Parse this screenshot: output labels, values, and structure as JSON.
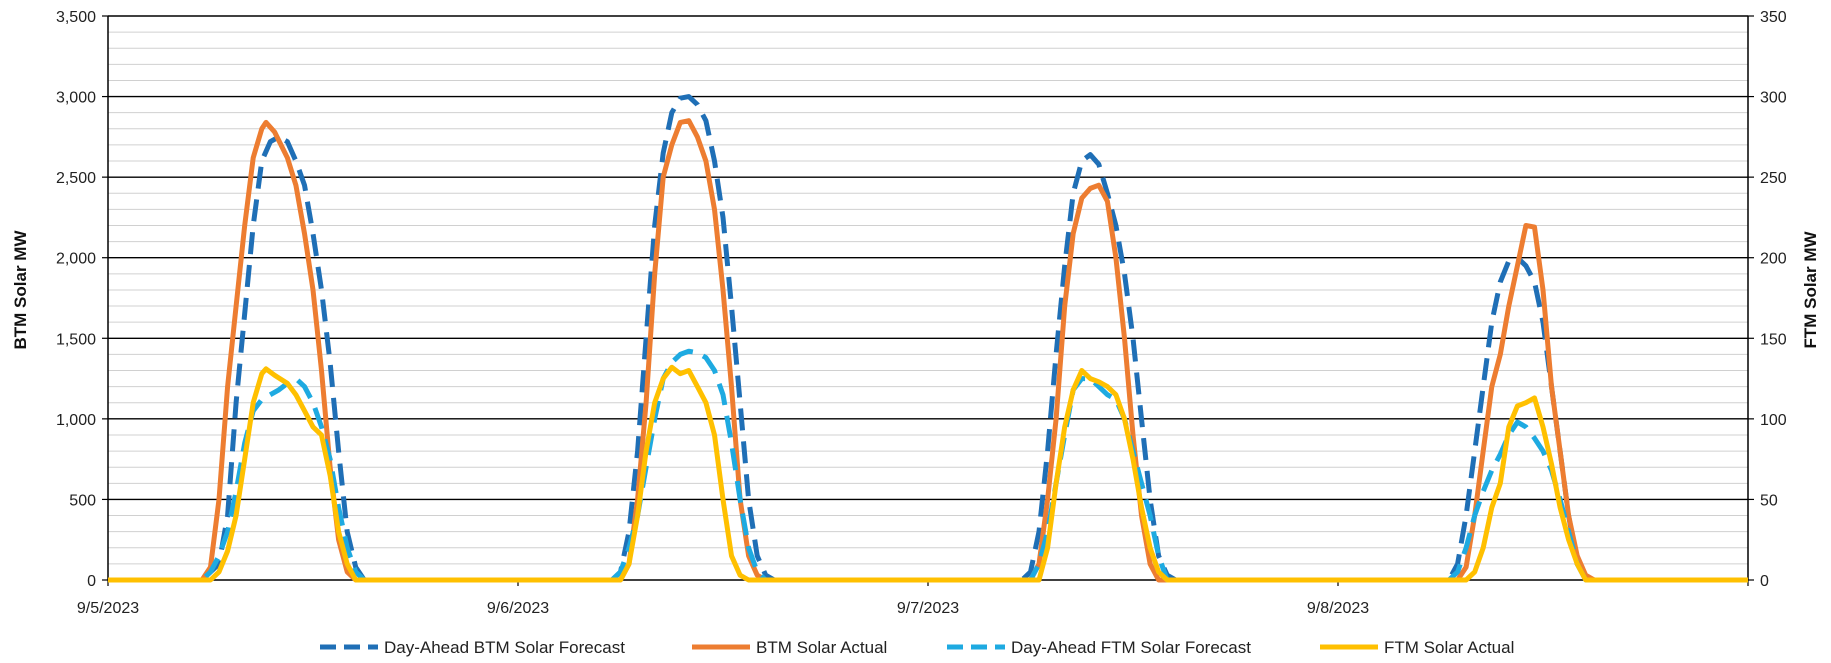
{
  "chart_data": {
    "type": "line",
    "ylabel_left": "BTM Solar MW",
    "ylabel_right": "FTM Solar MW",
    "ylim_left": [
      0,
      3500
    ],
    "ylim_right": [
      0,
      350
    ],
    "left_ticks": [
      "0",
      "500",
      "1,000",
      "1,500",
      "2,000",
      "2,500",
      "3,000",
      "3,500"
    ],
    "right_ticks": [
      "0",
      "50",
      "100",
      "150",
      "200",
      "250",
      "300",
      "350"
    ],
    "x_ticks": [
      "9/5/2023",
      "9/6/2023",
      "9/7/2023",
      "9/8/2023"
    ],
    "x_range_hours": [
      0,
      96
    ],
    "x_unit": "hour",
    "grid": "major and minor horizontal",
    "legend_position": "bottom",
    "series": [
      {
        "name": "Day-Ahead BTM Solar Forecast",
        "axis": "left",
        "color": "#1F6FB6",
        "style": "dashed",
        "points": [
          [
            0,
            0
          ],
          [
            5.5,
            0
          ],
          [
            6.5,
            100
          ],
          [
            7,
            400
          ],
          [
            7.5,
            1100
          ],
          [
            8.5,
            2200
          ],
          [
            9,
            2600
          ],
          [
            9.5,
            2720
          ],
          [
            10,
            2750
          ],
          [
            10.5,
            2720
          ],
          [
            11,
            2600
          ],
          [
            11.5,
            2450
          ],
          [
            12,
            2150
          ],
          [
            12.5,
            1800
          ],
          [
            13,
            1350
          ],
          [
            13.5,
            800
          ],
          [
            14,
            300
          ],
          [
            14.5,
            80
          ],
          [
            15,
            0
          ],
          [
            24,
            0
          ],
          [
            29.5,
            0
          ],
          [
            30,
            50
          ],
          [
            30.5,
            300
          ],
          [
            31,
            800
          ],
          [
            31.5,
            1500
          ],
          [
            32,
            2200
          ],
          [
            32.5,
            2650
          ],
          [
            33,
            2900
          ],
          [
            33.5,
            2990
          ],
          [
            34,
            3000
          ],
          [
            34.5,
            2950
          ],
          [
            35,
            2850
          ],
          [
            35.5,
            2600
          ],
          [
            36,
            2250
          ],
          [
            36.5,
            1700
          ],
          [
            37,
            1100
          ],
          [
            37.5,
            500
          ],
          [
            38,
            150
          ],
          [
            38.5,
            30
          ],
          [
            39,
            0
          ],
          [
            48,
            0
          ],
          [
            53.5,
            0
          ],
          [
            54,
            50
          ],
          [
            54.5,
            300
          ],
          [
            55,
            800
          ],
          [
            55.5,
            1400
          ],
          [
            56,
            1950
          ],
          [
            56.5,
            2400
          ],
          [
            57,
            2600
          ],
          [
            57.5,
            2640
          ],
          [
            58,
            2580
          ],
          [
            58.5,
            2400
          ],
          [
            59,
            2200
          ],
          [
            59.5,
            1900
          ],
          [
            60,
            1500
          ],
          [
            60.5,
            1000
          ],
          [
            61,
            500
          ],
          [
            61.5,
            150
          ],
          [
            62,
            30
          ],
          [
            62.5,
            0
          ],
          [
            72,
            0
          ],
          [
            78.5,
            0
          ],
          [
            79,
            100
          ],
          [
            79.5,
            400
          ],
          [
            80,
            800
          ],
          [
            80.5,
            1200
          ],
          [
            81,
            1600
          ],
          [
            81.5,
            1850
          ],
          [
            82,
            1980
          ],
          [
            82.5,
            2000
          ],
          [
            83,
            1950
          ],
          [
            83.5,
            1850
          ],
          [
            84,
            1600
          ],
          [
            84.5,
            1200
          ],
          [
            85,
            800
          ],
          [
            85.5,
            400
          ],
          [
            86,
            100
          ],
          [
            86.5,
            20
          ],
          [
            87,
            0
          ],
          [
            96,
            0
          ]
        ]
      },
      {
        "name": "BTM Solar Actual",
        "axis": "left",
        "color": "#ED7D31",
        "style": "solid",
        "points": [
          [
            0,
            0
          ],
          [
            5.5,
            0
          ],
          [
            6,
            80
          ],
          [
            6.5,
            500
          ],
          [
            7,
            1200
          ],
          [
            7.5,
            1700
          ],
          [
            8,
            2200
          ],
          [
            8.5,
            2620
          ],
          [
            9,
            2800
          ],
          [
            9.25,
            2840
          ],
          [
            9.75,
            2780
          ],
          [
            10.5,
            2620
          ],
          [
            11,
            2450
          ],
          [
            11.5,
            2150
          ],
          [
            12,
            1800
          ],
          [
            12.5,
            1300
          ],
          [
            13,
            700
          ],
          [
            13.5,
            250
          ],
          [
            14,
            50
          ],
          [
            14.5,
            0
          ],
          [
            24,
            0
          ],
          [
            30,
            0
          ],
          [
            30.5,
            100
          ],
          [
            31,
            500
          ],
          [
            31.5,
            1100
          ],
          [
            32,
            1900
          ],
          [
            32.5,
            2500
          ],
          [
            33,
            2700
          ],
          [
            33.5,
            2840
          ],
          [
            34,
            2850
          ],
          [
            34.5,
            2750
          ],
          [
            35,
            2600
          ],
          [
            35.5,
            2300
          ],
          [
            36,
            1800
          ],
          [
            36.5,
            1200
          ],
          [
            37,
            500
          ],
          [
            37.5,
            150
          ],
          [
            38,
            30
          ],
          [
            38.5,
            0
          ],
          [
            48,
            0
          ],
          [
            54,
            0
          ],
          [
            54.5,
            100
          ],
          [
            55,
            500
          ],
          [
            55.5,
            1000
          ],
          [
            56,
            1700
          ],
          [
            56.5,
            2150
          ],
          [
            57,
            2370
          ],
          [
            57.5,
            2430
          ],
          [
            58,
            2450
          ],
          [
            58.5,
            2350
          ],
          [
            59,
            2000
          ],
          [
            59.5,
            1500
          ],
          [
            60,
            900
          ],
          [
            60.5,
            400
          ],
          [
            61,
            100
          ],
          [
            61.5,
            0
          ],
          [
            72,
            0
          ],
          [
            79,
            0
          ],
          [
            79.5,
            80
          ],
          [
            80,
            400
          ],
          [
            80.5,
            800
          ],
          [
            81,
            1200
          ],
          [
            81.5,
            1400
          ],
          [
            82,
            1700
          ],
          [
            82.5,
            1950
          ],
          [
            83,
            2200
          ],
          [
            83.5,
            2190
          ],
          [
            84,
            1800
          ],
          [
            84.5,
            1200
          ],
          [
            85,
            800
          ],
          [
            85.5,
            400
          ],
          [
            86,
            150
          ],
          [
            86.5,
            30
          ],
          [
            87,
            0
          ],
          [
            96,
            0
          ]
        ]
      },
      {
        "name": "Day-Ahead FTM Solar Forecast",
        "axis": "right",
        "color": "#1EAAE1",
        "style": "dashed",
        "points": [
          [
            0,
            0
          ],
          [
            5.5,
            0
          ],
          [
            6,
            5
          ],
          [
            6.5,
            15
          ],
          [
            7,
            30
          ],
          [
            7.5,
            55
          ],
          [
            8,
            85
          ],
          [
            8.5,
            105
          ],
          [
            9,
            112
          ],
          [
            9.5,
            115
          ],
          [
            10,
            118
          ],
          [
            10.5,
            122
          ],
          [
            11,
            125
          ],
          [
            11.5,
            120
          ],
          [
            12,
            110
          ],
          [
            12.5,
            95
          ],
          [
            13,
            75
          ],
          [
            13.5,
            45
          ],
          [
            14,
            20
          ],
          [
            14.5,
            5
          ],
          [
            15,
            0
          ],
          [
            24,
            0
          ],
          [
            29.5,
            0
          ],
          [
            30,
            5
          ],
          [
            30.5,
            20
          ],
          [
            31,
            40
          ],
          [
            31.5,
            70
          ],
          [
            32,
            100
          ],
          [
            32.5,
            125
          ],
          [
            33,
            135
          ],
          [
            33.5,
            140
          ],
          [
            34,
            142
          ],
          [
            34.5,
            141
          ],
          [
            35,
            138
          ],
          [
            35.5,
            130
          ],
          [
            36,
            115
          ],
          [
            36.5,
            85
          ],
          [
            37,
            50
          ],
          [
            37.5,
            20
          ],
          [
            38,
            5
          ],
          [
            38.5,
            0
          ],
          [
            48,
            0
          ],
          [
            54,
            0
          ],
          [
            54.5,
            10
          ],
          [
            55,
            30
          ],
          [
            55.5,
            60
          ],
          [
            56,
            90
          ],
          [
            56.5,
            118
          ],
          [
            57,
            125
          ],
          [
            57.5,
            125
          ],
          [
            58,
            120
          ],
          [
            58.5,
            115
          ],
          [
            59,
            112
          ],
          [
            59.5,
            100
          ],
          [
            60,
            80
          ],
          [
            60.5,
            60
          ],
          [
            61,
            40
          ],
          [
            61.5,
            15
          ],
          [
            62,
            0
          ],
          [
            72,
            0
          ],
          [
            78.5,
            0
          ],
          [
            79,
            5
          ],
          [
            79.5,
            20
          ],
          [
            80,
            40
          ],
          [
            80.5,
            55
          ],
          [
            81,
            68
          ],
          [
            81.5,
            78
          ],
          [
            82,
            90
          ],
          [
            82.5,
            98
          ],
          [
            83,
            95
          ],
          [
            83.5,
            88
          ],
          [
            84,
            80
          ],
          [
            84.5,
            68
          ],
          [
            85,
            50
          ],
          [
            85.5,
            30
          ],
          [
            86,
            10
          ],
          [
            86.5,
            0
          ],
          [
            96,
            0
          ]
        ]
      },
      {
        "name": "FTM Solar Actual",
        "axis": "right",
        "color": "#FFC000",
        "style": "solid",
        "points": [
          [
            0,
            0
          ],
          [
            6,
            0
          ],
          [
            6.5,
            5
          ],
          [
            7,
            18
          ],
          [
            7.5,
            40
          ],
          [
            8,
            75
          ],
          [
            8.5,
            110
          ],
          [
            9,
            128
          ],
          [
            9.25,
            131
          ],
          [
            9.75,
            127
          ],
          [
            10.5,
            122
          ],
          [
            11,
            115
          ],
          [
            11.5,
            105
          ],
          [
            12,
            95
          ],
          [
            12.5,
            90
          ],
          [
            13,
            65
          ],
          [
            13.5,
            30
          ],
          [
            14,
            10
          ],
          [
            14.5,
            0
          ],
          [
            24,
            0
          ],
          [
            30,
            0
          ],
          [
            30.5,
            10
          ],
          [
            31,
            40
          ],
          [
            31.5,
            80
          ],
          [
            32,
            110
          ],
          [
            32.5,
            125
          ],
          [
            33,
            132
          ],
          [
            33.5,
            128
          ],
          [
            34,
            130
          ],
          [
            34.5,
            120
          ],
          [
            35,
            110
          ],
          [
            35.5,
            90
          ],
          [
            36,
            50
          ],
          [
            36.5,
            15
          ],
          [
            37,
            3
          ],
          [
            37.5,
            0
          ],
          [
            48,
            0
          ],
          [
            54.5,
            0
          ],
          [
            55,
            20
          ],
          [
            55.5,
            60
          ],
          [
            56,
            95
          ],
          [
            56.5,
            118
          ],
          [
            57,
            130
          ],
          [
            57.5,
            125
          ],
          [
            58,
            123
          ],
          [
            58.5,
            120
          ],
          [
            59,
            115
          ],
          [
            59.5,
            100
          ],
          [
            60,
            75
          ],
          [
            60.5,
            45
          ],
          [
            61,
            20
          ],
          [
            61.5,
            5
          ],
          [
            62,
            0
          ],
          [
            72,
            0
          ],
          [
            79.5,
            0
          ],
          [
            80,
            5
          ],
          [
            80.5,
            20
          ],
          [
            81,
            45
          ],
          [
            81.5,
            60
          ],
          [
            82,
            95
          ],
          [
            82.5,
            108
          ],
          [
            83,
            110
          ],
          [
            83.5,
            113
          ],
          [
            84,
            95
          ],
          [
            84.5,
            72
          ],
          [
            85,
            45
          ],
          [
            85.5,
            25
          ],
          [
            86,
            10
          ],
          [
            86.5,
            0
          ],
          [
            96,
            0
          ]
        ]
      }
    ]
  }
}
